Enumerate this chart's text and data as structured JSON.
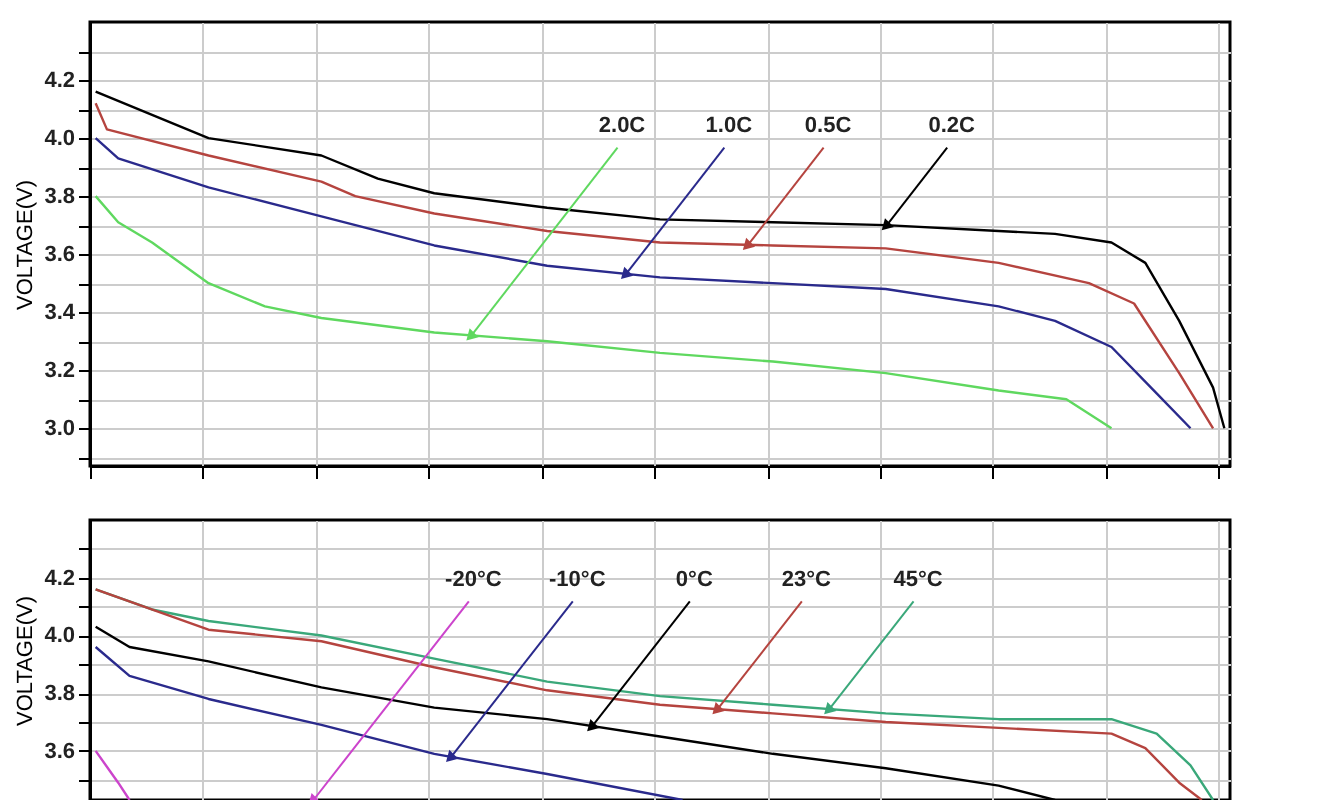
{
  "chart_data": [
    {
      "type": "line",
      "ylabel": "VOLTAGE(V)",
      "ylim": [
        2.87,
        4.4
      ],
      "tick_labels": "y",
      "grid": true,
      "marker": "none",
      "line_style": "solid",
      "categories": [
        null,
        null,
        null,
        null,
        null,
        null,
        null,
        null,
        null,
        null,
        null,
        null,
        null,
        null,
        null,
        null,
        null,
        null,
        null,
        null,
        null,
        null,
        null,
        null,
        null,
        null,
        null,
        null,
        null,
        null,
        null,
        null,
        null,
        null,
        null,
        null,
        null,
        null,
        null,
        null,
        null,
        null,
        null,
        null,
        null,
        null,
        null,
        null,
        null,
        null,
        null,
        null,
        null,
        null,
        null,
        null,
        null,
        null,
        null,
        null,
        null,
        null,
        null,
        null,
        null,
        null,
        null,
        null,
        null,
        null,
        null,
        null,
        null,
        null,
        null,
        null,
        null,
        null,
        null,
        null,
        null,
        null,
        null,
        null,
        null,
        null,
        null,
        null,
        null,
        null,
        null,
        null,
        null,
        null,
        null,
        null,
        null,
        null,
        null,
        null,
        null
      ],
      "yticks": [
        {
          "value": 2.9,
          "label": null
        },
        {
          "value": 3,
          "label": "3.0"
        },
        {
          "value": 3.1,
          "label": null
        },
        3.2,
        {
          "value": 3.3,
          "label": null
        },
        3.4,
        {
          "value": 3.5,
          "label": null
        },
        3.6,
        {
          "value": 3.7,
          "label": null
        },
        3.8,
        {
          "value": 3.9,
          "label": null
        },
        {
          "value": 4,
          "label": "4.0"
        },
        {
          "value": 4.1,
          "label": null
        },
        4.2,
        {
          "value": 4.3,
          "label": null
        }
      ],
      "series": [
        {
          "color": "#000000",
          "values": [
            4.16,
            null,
            null,
            null,
            null,
            null,
            null,
            null,
            null,
            null,
            4.0,
            null,
            null,
            null,
            null,
            null,
            null,
            null,
            null,
            null,
            3.94,
            null,
            null,
            null,
            null,
            3.86,
            null,
            null,
            null,
            null,
            3.81,
            null,
            null,
            null,
            null,
            null,
            null,
            null,
            null,
            null,
            3.76,
            null,
            null,
            null,
            null,
            null,
            null,
            null,
            null,
            null,
            3.72,
            null,
            null,
            null,
            null,
            null,
            null,
            null,
            null,
            null,
            3.71,
            null,
            null,
            null,
            null,
            null,
            null,
            null,
            null,
            null,
            3.7,
            null,
            null,
            null,
            null,
            null,
            null,
            null,
            null,
            null,
            3.68,
            null,
            null,
            null,
            null,
            3.67,
            null,
            null,
            null,
            null,
            3.64,
            null,
            null,
            3.57,
            null,
            null,
            3.37,
            null,
            null,
            3.14,
            3.0
          ]
        },
        {
          "color": "#b5443f",
          "values": [
            4.12,
            4.03,
            null,
            null,
            null,
            null,
            null,
            null,
            null,
            null,
            3.94,
            null,
            null,
            null,
            null,
            null,
            null,
            null,
            null,
            null,
            3.85,
            null,
            null,
            3.8,
            null,
            null,
            null,
            null,
            null,
            null,
            3.74,
            null,
            null,
            null,
            null,
            null,
            null,
            null,
            null,
            null,
            3.68,
            null,
            null,
            null,
            null,
            null,
            null,
            null,
            null,
            null,
            3.64,
            null,
            null,
            null,
            null,
            null,
            null,
            null,
            null,
            null,
            3.63,
            null,
            null,
            null,
            null,
            null,
            null,
            null,
            null,
            null,
            3.62,
            null,
            null,
            null,
            null,
            null,
            null,
            null,
            null,
            null,
            3.57,
            null,
            null,
            null,
            null,
            null,
            null,
            null,
            3.5,
            null,
            null,
            null,
            3.43,
            null,
            null,
            null,
            3.19,
            null,
            null,
            3.0,
            null
          ]
        },
        {
          "color": "#2a2a8c",
          "values": [
            4.0,
            null,
            3.93,
            null,
            null,
            null,
            null,
            null,
            null,
            null,
            3.83,
            null,
            null,
            null,
            null,
            null,
            null,
            null,
            null,
            null,
            3.73,
            null,
            null,
            null,
            null,
            null,
            null,
            null,
            null,
            null,
            3.63,
            null,
            null,
            null,
            null,
            null,
            null,
            null,
            null,
            null,
            3.56,
            null,
            null,
            null,
            null,
            null,
            null,
            null,
            null,
            null,
            3.52,
            null,
            null,
            null,
            null,
            null,
            null,
            null,
            null,
            null,
            3.5,
            null,
            null,
            null,
            null,
            null,
            null,
            null,
            null,
            null,
            3.48,
            null,
            null,
            null,
            null,
            null,
            null,
            null,
            null,
            null,
            3.42,
            null,
            null,
            null,
            null,
            3.37,
            null,
            null,
            null,
            null,
            3.28,
            null,
            null,
            null,
            3.12,
            null,
            null,
            3.0,
            null,
            null,
            null
          ]
        },
        {
          "color": "#5fd85f",
          "values": [
            3.8,
            null,
            3.71,
            null,
            null,
            3.64,
            null,
            null,
            null,
            null,
            3.5,
            null,
            null,
            null,
            null,
            3.42,
            null,
            null,
            null,
            null,
            3.38,
            null,
            null,
            null,
            null,
            null,
            null,
            null,
            null,
            null,
            3.33,
            null,
            null,
            null,
            null,
            null,
            null,
            null,
            null,
            null,
            3.3,
            null,
            null,
            null,
            null,
            null,
            null,
            null,
            null,
            null,
            3.26,
            null,
            null,
            null,
            null,
            null,
            null,
            null,
            null,
            null,
            3.23,
            null,
            null,
            null,
            null,
            null,
            null,
            null,
            null,
            null,
            3.19,
            null,
            null,
            null,
            null,
            null,
            null,
            null,
            null,
            null,
            3.13,
            null,
            null,
            null,
            null,
            null,
            3.1,
            null,
            null,
            null,
            3.0,
            null,
            null,
            null,
            null,
            null,
            null,
            null,
            null,
            null,
            null
          ]
        }
      ],
      "annotations": [
        "2.0C",
        "1.0C",
        "0.5C",
        "0.2C"
      ]
    },
    {
      "type": "line",
      "ylabel": "VOLTAGE(V)",
      "ylim": [
        3.43,
        4.4
      ],
      "tick_labels": "y",
      "grid": true,
      "marker": "none",
      "line_style": "solid",
      "categories": [
        null,
        null,
        null,
        null,
        null,
        null,
        null,
        null,
        null,
        null,
        null,
        null,
        null,
        null,
        null,
        null,
        null,
        null,
        null,
        null,
        null,
        null,
        null,
        null,
        null,
        null,
        null,
        null,
        null,
        null,
        null,
        null,
        null,
        null,
        null,
        null,
        null,
        null,
        null,
        null,
        null,
        null,
        null,
        null,
        null,
        null,
        null,
        null,
        null,
        null,
        null,
        null,
        null,
        null,
        null,
        null,
        null,
        null,
        null,
        null,
        null,
        null,
        null,
        null,
        null,
        null,
        null,
        null,
        null,
        null,
        null,
        null,
        null,
        null,
        null,
        null,
        null,
        null,
        null,
        null,
        null,
        null,
        null,
        null,
        null,
        null,
        null,
        null,
        null,
        null,
        null,
        null,
        null,
        null,
        null,
        null,
        null,
        null,
        null,
        null,
        null
      ],
      "yticks": [
        {
          "value": 3.5,
          "label": null
        },
        3.6,
        {
          "value": 3.7,
          "label": null
        },
        3.8,
        {
          "value": 3.9,
          "label": null
        },
        {
          "value": 4,
          "label": "4.0"
        },
        {
          "value": 4.1,
          "label": null
        },
        4.2,
        {
          "value": 4.3,
          "label": null
        }
      ],
      "series": [
        {
          "color": "#3aa87a",
          "values": [
            4.16,
            null,
            null,
            null,
            null,
            4.09,
            null,
            null,
            null,
            null,
            4.05,
            null,
            null,
            null,
            null,
            null,
            null,
            null,
            null,
            null,
            4.0,
            null,
            null,
            null,
            null,
            null,
            null,
            null,
            null,
            null,
            3.92,
            null,
            null,
            null,
            null,
            null,
            null,
            null,
            null,
            null,
            3.84,
            null,
            null,
            null,
            null,
            null,
            null,
            null,
            null,
            null,
            3.79,
            null,
            null,
            null,
            null,
            null,
            null,
            null,
            null,
            null,
            3.76,
            null,
            null,
            null,
            null,
            null,
            null,
            null,
            null,
            null,
            3.73,
            null,
            null,
            null,
            null,
            null,
            null,
            null,
            null,
            null,
            3.71,
            null,
            null,
            null,
            null,
            null,
            null,
            null,
            null,
            null,
            3.71,
            null,
            null,
            null,
            3.66,
            null,
            null,
            3.55,
            null,
            3.43,
            null
          ]
        },
        {
          "color": "#b5443f",
          "values": [
            4.16,
            null,
            null,
            null,
            null,
            null,
            null,
            null,
            null,
            null,
            4.02,
            null,
            null,
            null,
            null,
            null,
            null,
            null,
            null,
            null,
            3.98,
            null,
            null,
            null,
            null,
            null,
            null,
            null,
            null,
            null,
            3.89,
            null,
            null,
            null,
            null,
            null,
            null,
            null,
            null,
            null,
            3.81,
            null,
            null,
            null,
            null,
            null,
            null,
            null,
            null,
            null,
            3.76,
            null,
            null,
            null,
            null,
            null,
            null,
            null,
            null,
            null,
            3.73,
            null,
            null,
            null,
            null,
            null,
            null,
            null,
            null,
            null,
            3.7,
            null,
            null,
            null,
            null,
            null,
            null,
            null,
            null,
            null,
            3.68,
            null,
            null,
            null,
            null,
            null,
            null,
            null,
            null,
            null,
            3.66,
            null,
            null,
            3.61,
            null,
            null,
            3.49,
            null,
            3.43,
            null,
            null
          ]
        },
        {
          "color": "#000000",
          "values": [
            4.03,
            null,
            null,
            3.96,
            null,
            null,
            null,
            null,
            null,
            null,
            3.91,
            null,
            null,
            null,
            null,
            null,
            null,
            null,
            null,
            null,
            3.82,
            null,
            null,
            null,
            null,
            null,
            null,
            null,
            null,
            null,
            3.75,
            null,
            null,
            null,
            null,
            null,
            null,
            null,
            null,
            null,
            3.71,
            null,
            null,
            null,
            null,
            null,
            null,
            null,
            null,
            null,
            3.65,
            null,
            null,
            null,
            null,
            null,
            null,
            null,
            null,
            null,
            3.59,
            null,
            null,
            null,
            null,
            null,
            null,
            null,
            null,
            null,
            3.54,
            null,
            null,
            null,
            null,
            null,
            null,
            null,
            null,
            null,
            3.48,
            null,
            null,
            null,
            null,
            3.43,
            null,
            null,
            null,
            null,
            null,
            null,
            null,
            null,
            null,
            null,
            null,
            null,
            null,
            null,
            null
          ]
        },
        {
          "color": "#2a2a8c",
          "values": [
            3.96,
            null,
            null,
            3.86,
            null,
            null,
            null,
            null,
            null,
            null,
            3.78,
            null,
            null,
            null,
            null,
            null,
            null,
            null,
            null,
            null,
            3.69,
            null,
            null,
            null,
            null,
            null,
            null,
            null,
            null,
            null,
            3.59,
            null,
            null,
            null,
            null,
            null,
            null,
            null,
            null,
            null,
            3.52,
            null,
            null,
            null,
            null,
            null,
            null,
            null,
            null,
            null,
            null,
            null,
            3.43,
            null,
            null,
            null,
            null,
            null,
            null,
            null,
            null,
            null,
            null,
            null,
            null,
            null,
            null,
            null,
            null,
            null,
            null,
            null,
            null,
            null,
            null,
            null,
            null,
            null,
            null,
            null,
            null,
            null,
            null,
            null,
            null,
            null,
            null,
            null,
            null,
            null,
            null,
            null,
            null,
            null,
            null,
            null,
            null,
            null,
            null,
            null,
            null
          ]
        },
        {
          "color": "#cc44cc",
          "values": [
            3.6,
            null,
            3.49,
            3.43,
            null,
            null,
            null,
            null,
            null,
            null,
            null,
            null,
            null,
            null,
            null,
            null,
            null,
            null,
            null,
            null,
            null,
            null,
            null,
            null,
            null,
            null,
            null,
            null,
            null,
            null,
            null,
            null,
            null,
            null,
            null,
            null,
            null,
            null,
            null,
            null,
            null,
            null,
            null,
            null,
            null,
            null,
            null,
            null,
            null,
            null,
            null,
            null,
            null,
            null,
            null,
            null,
            null,
            null,
            null,
            null,
            null,
            null,
            null,
            null,
            null,
            null,
            null,
            null,
            null,
            null,
            null,
            null,
            null,
            null,
            null,
            null,
            null,
            null,
            null,
            null,
            null,
            null,
            null,
            null,
            null,
            null,
            null,
            null,
            null,
            null,
            null,
            null,
            null,
            null,
            null,
            null,
            null,
            null,
            null,
            null,
            null
          ]
        }
      ],
      "annotations": [
        "-20°C",
        "-10°C",
        "0°C",
        "23°C",
        "45°C"
      ]
    }
  ]
}
